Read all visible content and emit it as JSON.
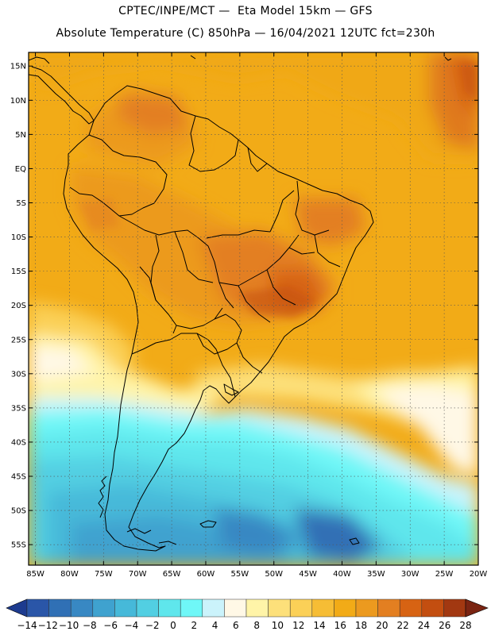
{
  "header": {
    "line1": "CPTEC/INPE/MCT —  Eta Model 15km — GFS",
    "line2": "Absolute Temperature (C) 850hPa — 16/04/2021 12UTC fct=230h"
  },
  "map": {
    "region": "South America",
    "lat_labels": [
      "15N",
      "10N",
      "5N",
      "EQ",
      "5S",
      "10S",
      "15S",
      "20S",
      "25S",
      "30S",
      "35S",
      "40S",
      "45S",
      "50S",
      "55S"
    ],
    "lon_labels": [
      "85W",
      "80W",
      "75W",
      "70W",
      "65W",
      "60W",
      "55W",
      "50W",
      "45W",
      "40W",
      "35W",
      "30W",
      "25W",
      "20W"
    ],
    "lat_range": [
      17,
      -58
    ],
    "lon_range": [
      -86,
      -20
    ]
  },
  "colorbar": {
    "units": "C",
    "labels": [
      "-14",
      "-12",
      "-10",
      "-8",
      "-6",
      "-4",
      "-2",
      "0",
      "2",
      "4",
      "6",
      "8",
      "10",
      "12",
      "14",
      "16",
      "18",
      "20",
      "22",
      "24",
      "26",
      "28"
    ],
    "colors": [
      "#1d3b8f",
      "#2a56a8",
      "#3070b5",
      "#3888c3",
      "#3fa2cf",
      "#46b9d9",
      "#52cfe2",
      "#5fe6ec",
      "#6ff7f7",
      "#cbf3fb",
      "#fff8e6",
      "#fff4a8",
      "#fde07a",
      "#fbd057",
      "#f6bd35",
      "#f2ab17",
      "#ec9a1f",
      "#e37f21",
      "#d76313",
      "#c34e10",
      "#a23811",
      "#7a2412"
    ]
  }
}
